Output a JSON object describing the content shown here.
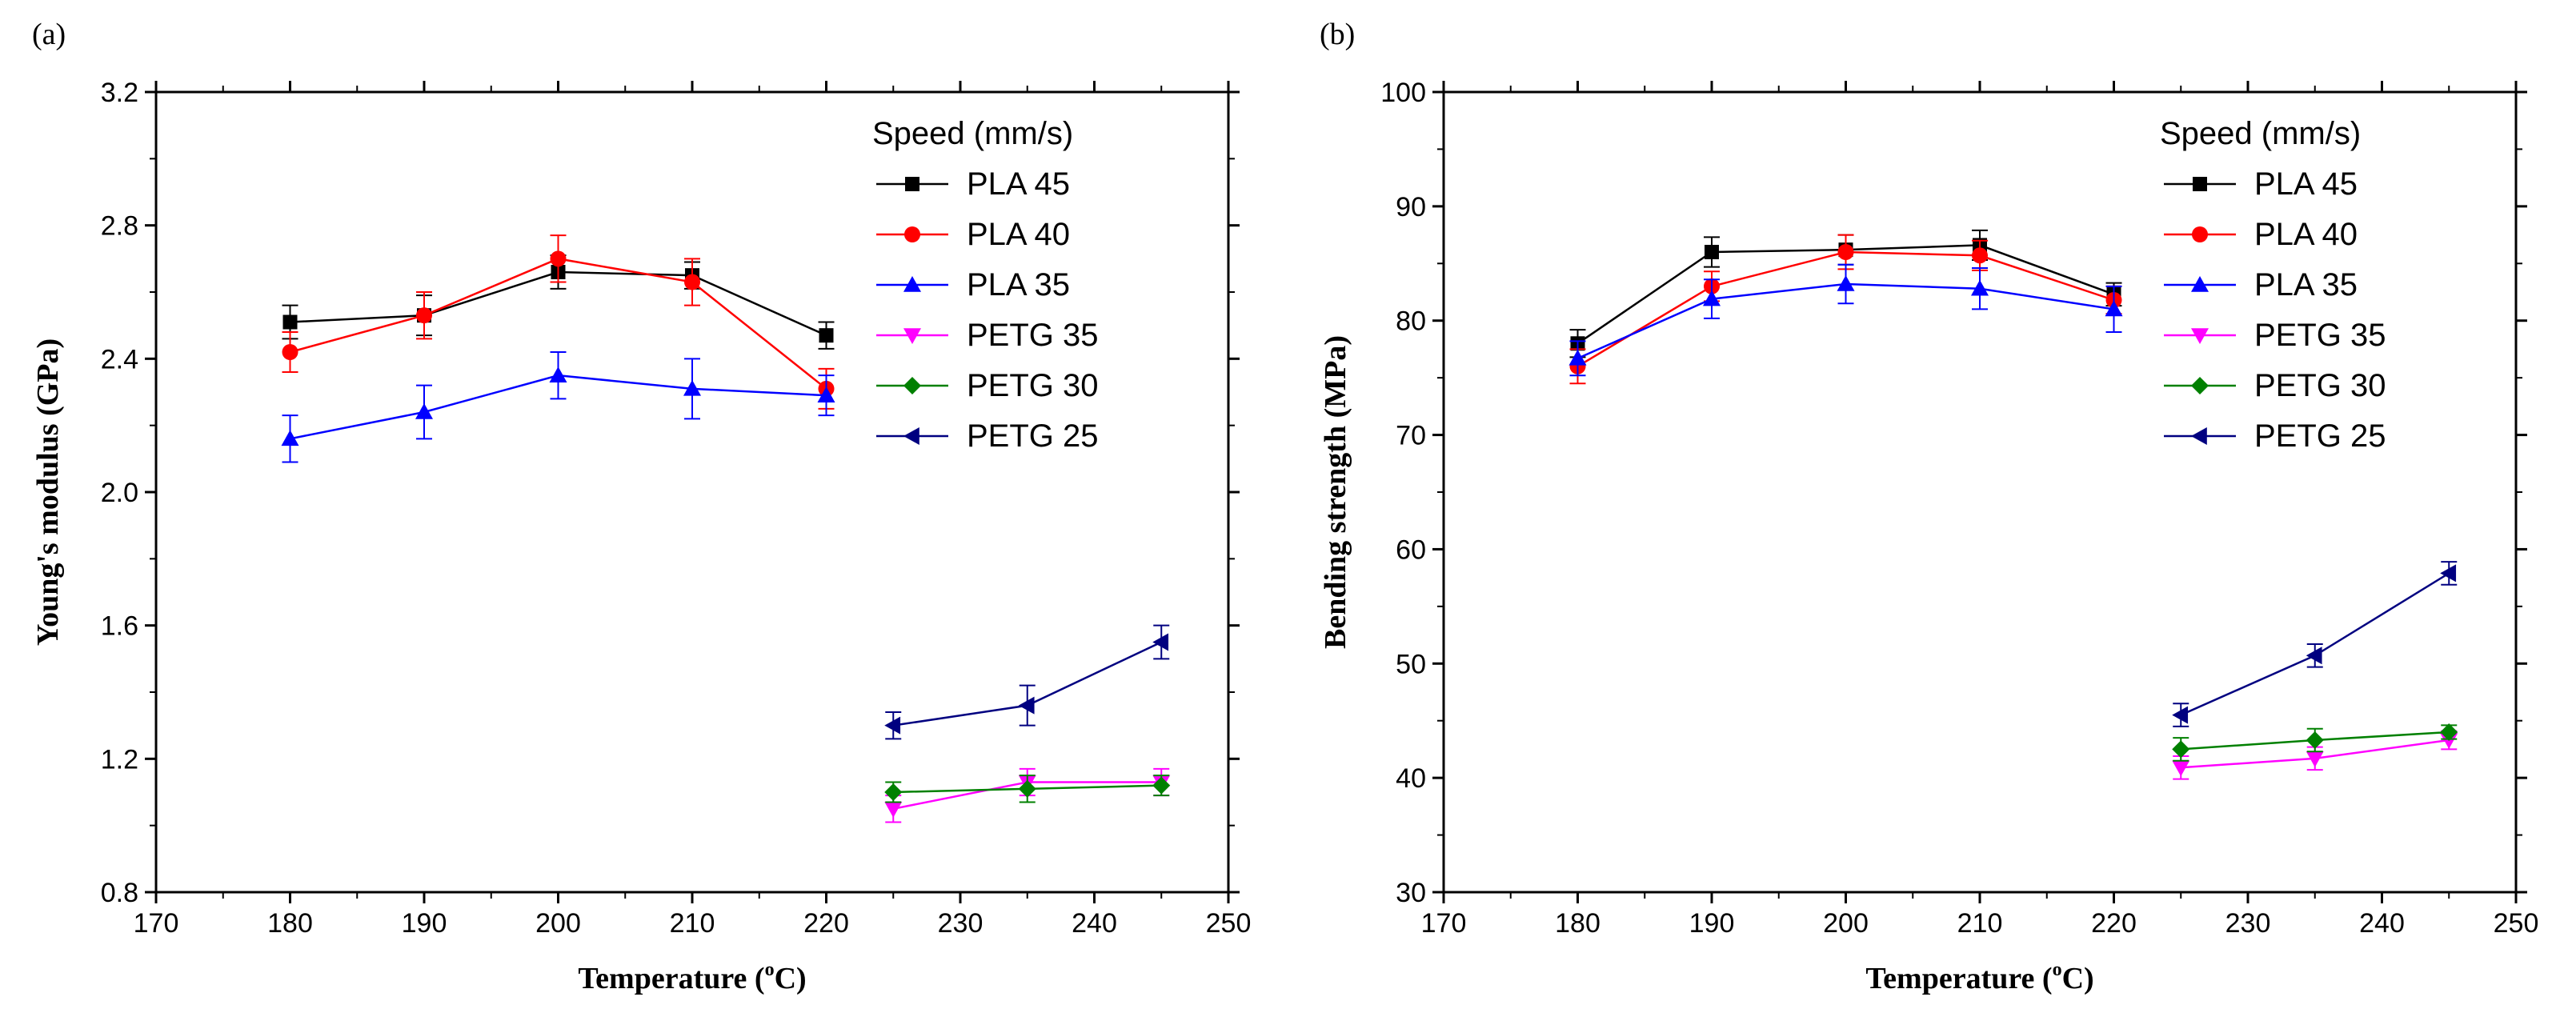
{
  "chart_data": [
    {
      "type": "line",
      "panel_label": "(a)",
      "xlabel": "Temperature (",
      "xlabel_sup": "o",
      "xlabel_suffix": "C)",
      "ylabel": "Young's modulus (GPa)",
      "xlim": [
        170,
        250
      ],
      "ylim": [
        0.8,
        3.2
      ],
      "xticks": [
        "170",
        "180",
        "190",
        "200",
        "210",
        "220",
        "230",
        "240",
        "250"
      ],
      "yticks": [
        "0.8",
        "1.2",
        "1.6",
        "2.0",
        "2.4",
        "2.8",
        "3.2"
      ],
      "legend_title": "Speed (mm/s)",
      "legend_position": "top-right",
      "series": [
        {
          "name": "PLA 45",
          "marker": "square",
          "color": "#000000",
          "x": [
            180,
            190,
            200,
            210,
            220
          ],
          "y": [
            2.51,
            2.53,
            2.66,
            2.65,
            2.47
          ],
          "err": [
            0.05,
            0.06,
            0.05,
            0.04,
            0.04
          ]
        },
        {
          "name": "PLA 40",
          "marker": "circle",
          "color": "#ff0000",
          "x": [
            180,
            190,
            200,
            210,
            220
          ],
          "y": [
            2.42,
            2.53,
            2.7,
            2.63,
            2.31
          ],
          "err": [
            0.06,
            0.07,
            0.07,
            0.07,
            0.06
          ]
        },
        {
          "name": "PLA 35",
          "marker": "triangle-up",
          "color": "#0000ff",
          "x": [
            180,
            190,
            200,
            210,
            220
          ],
          "y": [
            2.16,
            2.24,
            2.35,
            2.31,
            2.29
          ],
          "err": [
            0.07,
            0.08,
            0.07,
            0.09,
            0.06
          ]
        },
        {
          "name": "PETG 35",
          "marker": "triangle-down",
          "color": "#ff00ff",
          "x": [
            225,
            235,
            245
          ],
          "y": [
            1.05,
            1.13,
            1.13
          ],
          "err": [
            0.04,
            0.04,
            0.04
          ]
        },
        {
          "name": "PETG 30",
          "marker": "diamond",
          "color": "#008000",
          "x": [
            225,
            235,
            245
          ],
          "y": [
            1.1,
            1.11,
            1.12
          ],
          "err": [
            0.03,
            0.04,
            0.03
          ]
        },
        {
          "name": "PETG 25",
          "marker": "triangle-left",
          "color": "#000080",
          "x": [
            225,
            235,
            245
          ],
          "y": [
            1.3,
            1.36,
            1.55
          ],
          "err": [
            0.04,
            0.06,
            0.05
          ]
        }
      ]
    },
    {
      "type": "line",
      "panel_label": "(b)",
      "xlabel": "Temperature (",
      "xlabel_sup": "o",
      "xlabel_suffix": "C)",
      "ylabel": "Bending strength (MPa)",
      "xlim": [
        170,
        250
      ],
      "ylim": [
        30,
        100
      ],
      "xticks": [
        "170",
        "180",
        "190",
        "200",
        "210",
        "220",
        "230",
        "240",
        "250"
      ],
      "yticks": [
        "30",
        "40",
        "50",
        "60",
        "70",
        "80",
        "90",
        "100"
      ],
      "legend_title": "Speed (mm/s)",
      "legend_position": "top-right",
      "series": [
        {
          "name": "PLA 45",
          "marker": "square",
          "color": "#000000",
          "x": [
            180,
            190,
            200,
            210,
            220
          ],
          "y": [
            78.0,
            86.0,
            86.2,
            86.6,
            82.3
          ],
          "err": [
            1.2,
            1.3,
            1.3,
            1.3,
            1.0
          ]
        },
        {
          "name": "PLA 40",
          "marker": "circle",
          "color": "#ff0000",
          "x": [
            180,
            190,
            200,
            210,
            220
          ],
          "y": [
            76.0,
            83.0,
            86.0,
            85.7,
            81.8
          ],
          "err": [
            1.5,
            1.3,
            1.5,
            1.3,
            1.2
          ]
        },
        {
          "name": "PLA 35",
          "marker": "triangle-up",
          "color": "#0000ff",
          "x": [
            180,
            190,
            200,
            210,
            220
          ],
          "y": [
            76.7,
            81.9,
            83.2,
            82.8,
            81.0
          ],
          "err": [
            1.5,
            1.7,
            1.7,
            1.8,
            2.0
          ]
        },
        {
          "name": "PETG 35",
          "marker": "triangle-down",
          "color": "#ff00ff",
          "x": [
            225,
            235,
            245
          ],
          "y": [
            40.9,
            41.7,
            43.3
          ],
          "err": [
            1.0,
            1.0,
            0.8
          ]
        },
        {
          "name": "PETG 30",
          "marker": "diamond",
          "color": "#008000",
          "x": [
            225,
            235,
            245
          ],
          "y": [
            42.5,
            43.3,
            44.0
          ],
          "err": [
            1.0,
            1.0,
            0.6
          ]
        },
        {
          "name": "PETG 25",
          "marker": "triangle-left",
          "color": "#000080",
          "x": [
            225,
            235,
            245
          ],
          "y": [
            45.5,
            50.7,
            57.9
          ],
          "err": [
            1.0,
            1.0,
            1.0
          ]
        }
      ]
    }
  ]
}
